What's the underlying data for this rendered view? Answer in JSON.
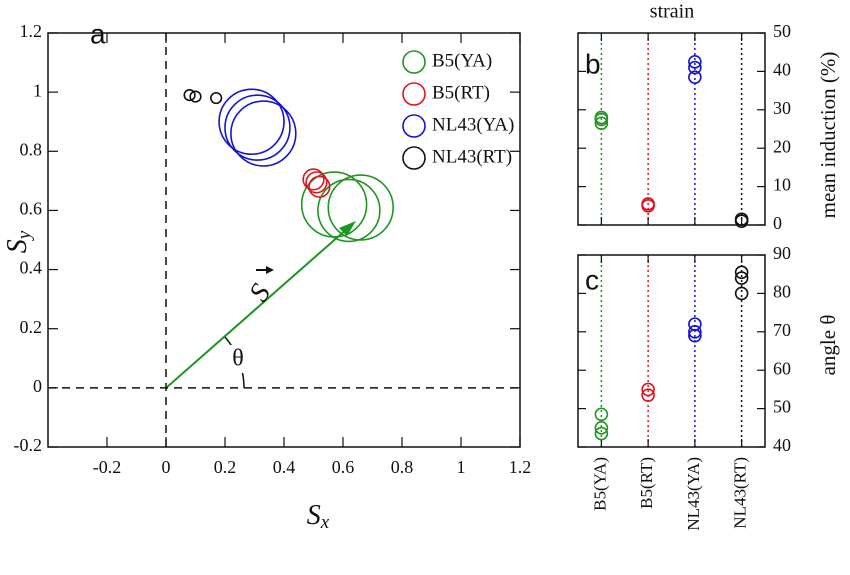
{
  "chart_data": [
    {
      "type": "scatter",
      "annotations": [
        {
          "text": "a"
        },
        {
          "text": "S"
        },
        {
          "text": "θ"
        }
      ],
      "x_label": {
        "symbol": "S",
        "subscript": "x"
      },
      "y_label": {
        "symbol": "S",
        "subscript": "y"
      },
      "xlim": [
        -0.4,
        1.2
      ],
      "xticks": [
        -0.2,
        0,
        0.2,
        0.4,
        0.6,
        0.8,
        1,
        1.2
      ],
      "ylim": [
        -0.2,
        1.2
      ],
      "yticks": [
        -0.2,
        0,
        0.2,
        0.4,
        0.6,
        0.8,
        1,
        1.2
      ],
      "legend": "upper right",
      "series": [
        {
          "name": "B5(YA)",
          "color": "#1e9620",
          "x": [
            0.57,
            0.62,
            0.66
          ],
          "values": [
            0.62,
            0.6,
            0.61
          ],
          "sizes": [
            0.11,
            0.105,
            0.11
          ]
        },
        {
          "name": "B5(RT)",
          "color": "#e0141e",
          "x": [
            0.5,
            0.51,
            0.52
          ],
          "values": [
            0.705,
            0.695,
            0.68
          ],
          "sizes": [
            0.035,
            0.035,
            0.035
          ]
        },
        {
          "name": "NL43(YA)",
          "color": "#1414d2",
          "x": [
            0.29,
            0.31,
            0.33
          ],
          "values": [
            0.9,
            0.88,
            0.86
          ],
          "sizes": [
            0.11,
            0.11,
            0.11
          ]
        },
        {
          "name": "NL43(RT)",
          "color": "#111111",
          "x": [
            0.08,
            0.1,
            0.17
          ],
          "values": [
            0.99,
            0.985,
            0.98
          ],
          "sizes": [
            0.018,
            0.018,
            0.018
          ]
        }
      ]
    },
    {
      "type": "strip",
      "title": "strain",
      "annotations": [
        {
          "text": "b"
        }
      ],
      "y_label": "mean induction (%)",
      "ylim": [
        0,
        50
      ],
      "yticks": [
        0,
        10,
        20,
        30,
        40,
        50
      ],
      "series": [
        {
          "color": "#1e9620",
          "values": [
            26.5,
            27.5,
            28
          ]
        },
        {
          "color": "#e0141e",
          "values": [
            5,
            5.5
          ]
        },
        {
          "color": "#1414d2",
          "values": [
            38.5,
            41,
            42.5
          ]
        },
        {
          "color": "#111111",
          "values": [
            1,
            1.5
          ]
        }
      ]
    },
    {
      "type": "strip",
      "annotations": [
        {
          "text": "c"
        }
      ],
      "y_label": "angle θ",
      "categories": [
        "B5(YA)",
        "B5(RT)",
        "NL43(YA)",
        "NL43(RT)"
      ],
      "ylim": [
        40,
        90
      ],
      "yticks": [
        40,
        50,
        60,
        70,
        80,
        90
      ],
      "series": [
        {
          "color": "#1e9620",
          "values": [
            43.5,
            45,
            48.5
          ]
        },
        {
          "color": "#e0141e",
          "values": [
            53.5,
            55
          ]
        },
        {
          "color": "#1414d2",
          "values": [
            69,
            70,
            72
          ]
        },
        {
          "color": "#111111",
          "values": [
            80,
            84,
            85.5
          ]
        }
      ]
    }
  ]
}
